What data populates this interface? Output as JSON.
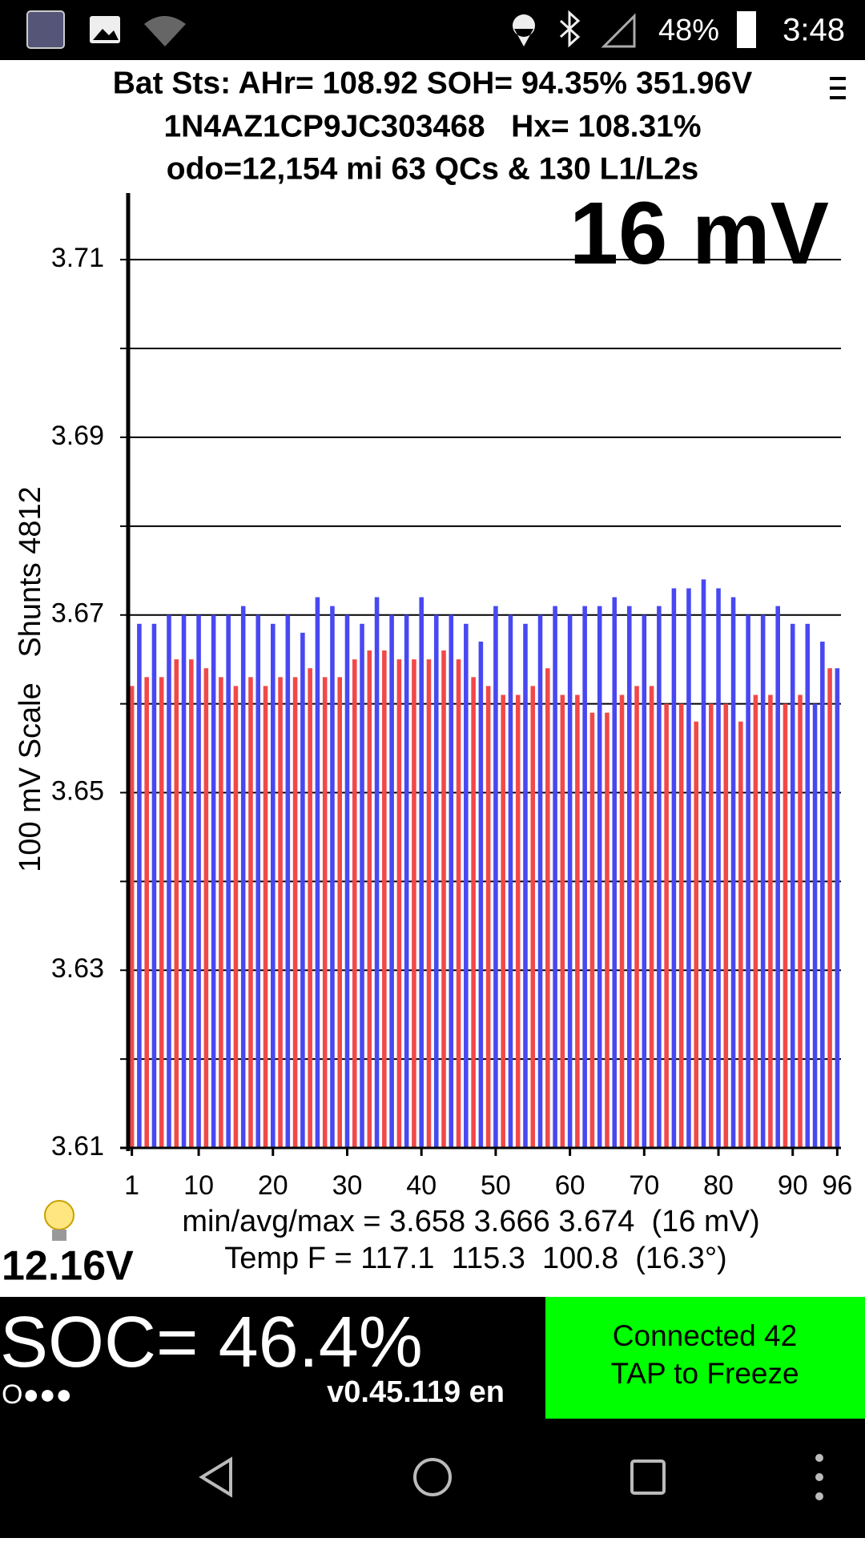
{
  "status_bar": {
    "battery": "48%",
    "time": "3:48"
  },
  "header": {
    "lines": [
      "Bat Sts: AHr= 108.92 SOH= 94.35% 351.96V",
      "1N4AZ1CP9JC303468   Hx= 108.31%",
      "odo=12,154 mi 63 QCs & 130 L1/L2s"
    ]
  },
  "chart_data": {
    "type": "bar",
    "y_label": "100 mV Scale   Shunts 4812",
    "annotation": "16 mV",
    "x": [
      1,
      2,
      3,
      4,
      5,
      6,
      7,
      8,
      9,
      10,
      11,
      12,
      13,
      14,
      15,
      16,
      17,
      18,
      19,
      20,
      21,
      22,
      23,
      24,
      25,
      26,
      27,
      28,
      29,
      30,
      31,
      32,
      33,
      34,
      35,
      36,
      37,
      38,
      39,
      40,
      41,
      42,
      43,
      44,
      45,
      46,
      47,
      48,
      49,
      50,
      51,
      52,
      53,
      54,
      55,
      56,
      57,
      58,
      59,
      60,
      61,
      62,
      63,
      64,
      65,
      66,
      67,
      68,
      69,
      70,
      71,
      72,
      73,
      74,
      75,
      76,
      77,
      78,
      79,
      80,
      81,
      82,
      83,
      84,
      85,
      86,
      87,
      88,
      89,
      90,
      91,
      92,
      93,
      94,
      95,
      96
    ],
    "values": [
      3.662,
      3.669,
      3.663,
      3.669,
      3.663,
      3.67,
      3.665,
      3.67,
      3.665,
      3.67,
      3.664,
      3.67,
      3.663,
      3.67,
      3.662,
      3.671,
      3.663,
      3.67,
      3.662,
      3.669,
      3.663,
      3.67,
      3.663,
      3.668,
      3.664,
      3.672,
      3.663,
      3.671,
      3.663,
      3.67,
      3.665,
      3.669,
      3.666,
      3.672,
      3.666,
      3.67,
      3.665,
      3.67,
      3.665,
      3.672,
      3.665,
      3.67,
      3.666,
      3.67,
      3.665,
      3.669,
      3.663,
      3.667,
      3.662,
      3.671,
      3.661,
      3.67,
      3.661,
      3.669,
      3.662,
      3.67,
      3.664,
      3.671,
      3.661,
      3.67,
      3.661,
      3.671,
      3.659,
      3.671,
      3.659,
      3.672,
      3.661,
      3.671,
      3.662,
      3.67,
      3.662,
      3.671,
      3.66,
      3.673,
      3.66,
      3.673,
      3.658,
      3.674,
      3.66,
      3.673,
      3.66,
      3.672,
      3.658,
      3.67,
      3.661,
      3.67,
      3.661,
      3.671,
      3.66,
      3.669,
      3.661,
      3.669,
      3.66,
      3.667,
      3.664,
      3.664
    ],
    "colors": [
      "#f24848",
      "#4848f2",
      "#f24848",
      "#4848f2",
      "#f24848",
      "#4848f2",
      "#f24848",
      "#4848f2",
      "#f24848",
      "#4848f2",
      "#f24848",
      "#4848f2",
      "#f24848",
      "#4848f2",
      "#f24848",
      "#4848f2",
      "#f24848",
      "#4848f2",
      "#f24848",
      "#4848f2",
      "#f24848",
      "#4848f2",
      "#f24848",
      "#4848f2",
      "#f24848",
      "#4848f2",
      "#f24848",
      "#4848f2",
      "#f24848",
      "#4848f2",
      "#f24848",
      "#4848f2",
      "#f24848",
      "#4848f2",
      "#f24848",
      "#4848f2",
      "#f24848",
      "#4848f2",
      "#f24848",
      "#4848f2",
      "#f24848",
      "#4848f2",
      "#f24848",
      "#4848f2",
      "#f24848",
      "#4848f2",
      "#f24848",
      "#4848f2",
      "#f24848",
      "#4848f2",
      "#f24848",
      "#4848f2",
      "#f24848",
      "#4848f2",
      "#f24848",
      "#4848f2",
      "#f24848",
      "#4848f2",
      "#f24848",
      "#4848f2",
      "#f24848",
      "#4848f2",
      "#f24848",
      "#4848f2",
      "#f24848",
      "#4848f2",
      "#f24848",
      "#4848f2",
      "#f24848",
      "#4848f2",
      "#f24848",
      "#4848f2",
      "#f24848",
      "#4848f2",
      "#f24848",
      "#4848f2",
      "#f24848",
      "#4848f2",
      "#f24848",
      "#4848f2",
      "#f24848",
      "#4848f2",
      "#f24848",
      "#4848f2",
      "#f24848",
      "#4848f2",
      "#f24848",
      "#4848f2",
      "#f24848",
      "#4848f2",
      "#f24848",
      "#4848f2",
      "#4848f2",
      "#4848f2",
      "#f24848",
      "#4848f2"
    ],
    "xlim": [
      0.5,
      96.5
    ],
    "xticks": [
      1,
      10,
      20,
      30,
      40,
      50,
      60,
      70,
      80,
      90,
      96
    ],
    "ylim": [
      3.61,
      3.7175
    ],
    "yticks": [
      3.61,
      3.63,
      3.65,
      3.67,
      3.69,
      3.71
    ],
    "ygrid": [
      3.62,
      3.64,
      3.66,
      3.68,
      3.7
    ],
    "grid": true
  },
  "footer": {
    "stats": "min/avg/max = 3.658 3.666 3.674  (16 mV)",
    "temps": "Temp F = 117.1  115.3  100.8  (16.3°)",
    "aux_voltage": "12.16V",
    "soc": "SOC= 46.4%",
    "dots": "O●●●",
    "version": "v0.45.119 en",
    "button": [
      "Connected 42",
      "TAP to Freeze"
    ]
  }
}
